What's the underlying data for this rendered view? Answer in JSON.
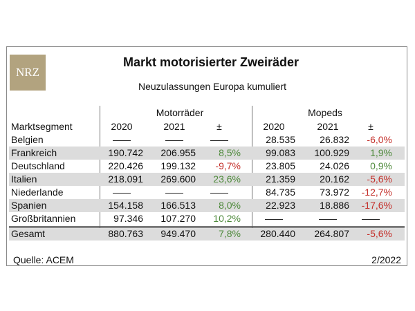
{
  "logo": {
    "text": "NRZ"
  },
  "title": "Markt motorisierter Zweiräder",
  "subtitle": "Neuzulassungen Europa kumuliert",
  "groups": {
    "motorraeder": "Motorräder",
    "mopeds": "Mopeds"
  },
  "header": [
    "Marktsegment",
    "2020",
    "2021",
    "±",
    "2020",
    "2021",
    "±"
  ],
  "rows": [
    [
      "Belgien",
      "—",
      "—",
      "—",
      "28.535",
      "26.832",
      "-6,0%"
    ],
    [
      "Frankreich",
      "190.742",
      "206.955",
      "8,5%",
      "99.083",
      "100.929",
      "1,9%"
    ],
    [
      "Deutschland",
      "220.426",
      "199.132",
      "-9,7%",
      "23.805",
      "24.026",
      "0,9%"
    ],
    [
      "Italien",
      "218.091",
      "269.600",
      "23,6%",
      "21.359",
      "20.162",
      "-5,6%"
    ],
    [
      "Niederlande",
      "—",
      "—",
      "—",
      "84.735",
      "73.972",
      "-12,7%"
    ],
    [
      "Spanien",
      "154.158",
      "166.513",
      "8,0%",
      "22.923",
      "18.886",
      "-17,6%"
    ],
    [
      "Großbritannien",
      "97.346",
      "107.270",
      "10,2%",
      "—",
      "—",
      "—"
    ]
  ],
  "total": [
    "Gesamt",
    "880.763",
    "949.470",
    "7,8%",
    "280.440",
    "264.807",
    "-5,6%"
  ],
  "colors": {
    "positive": "#4f8a3c",
    "negative": "#c4302b",
    "shade": "#dcdcdc",
    "logo": "#b2a37f"
  },
  "footer": {
    "source": "Quelle: ACEM",
    "date": "2/2022"
  }
}
